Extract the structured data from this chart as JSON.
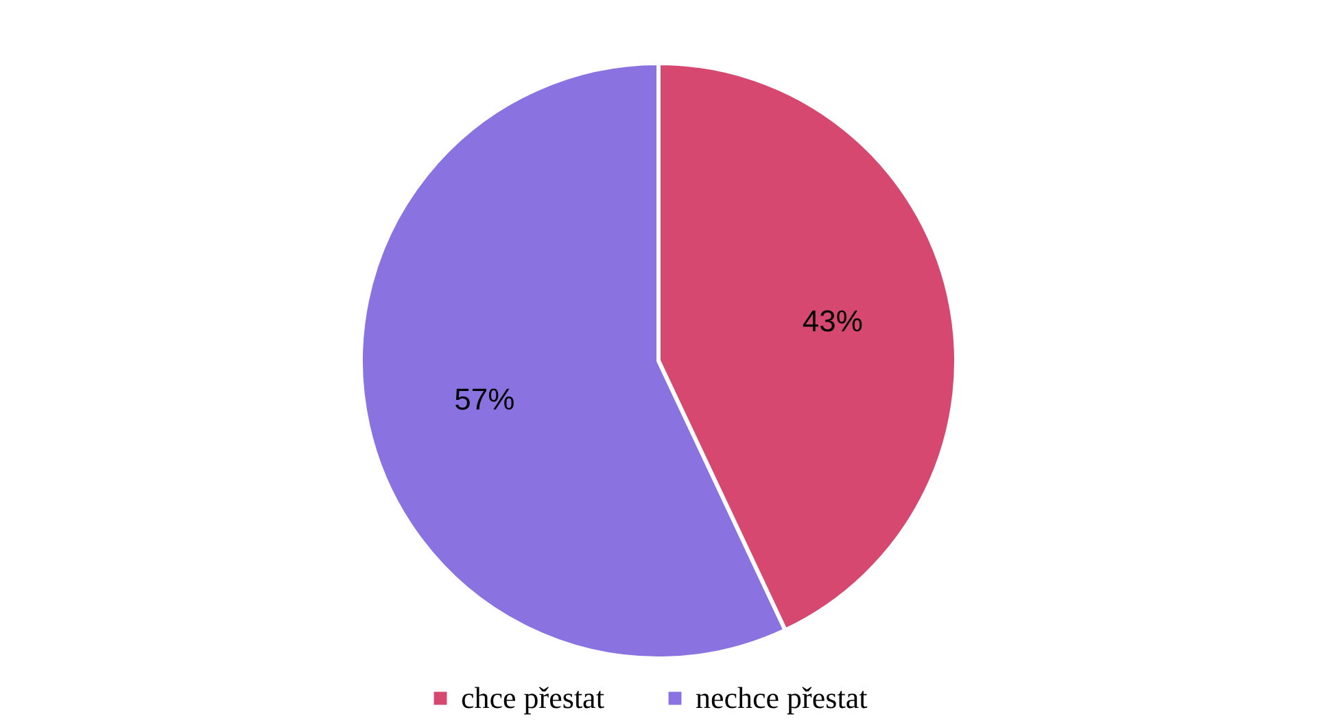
{
  "chart_data": {
    "type": "pie",
    "categories": [
      "chce přestat",
      "nechce přestat"
    ],
    "values": [
      43,
      57
    ],
    "colors": [
      "#d6486f",
      "#8a72e0"
    ],
    "value_labels": [
      "43%",
      "57%"
    ],
    "legend": "bottom"
  }
}
